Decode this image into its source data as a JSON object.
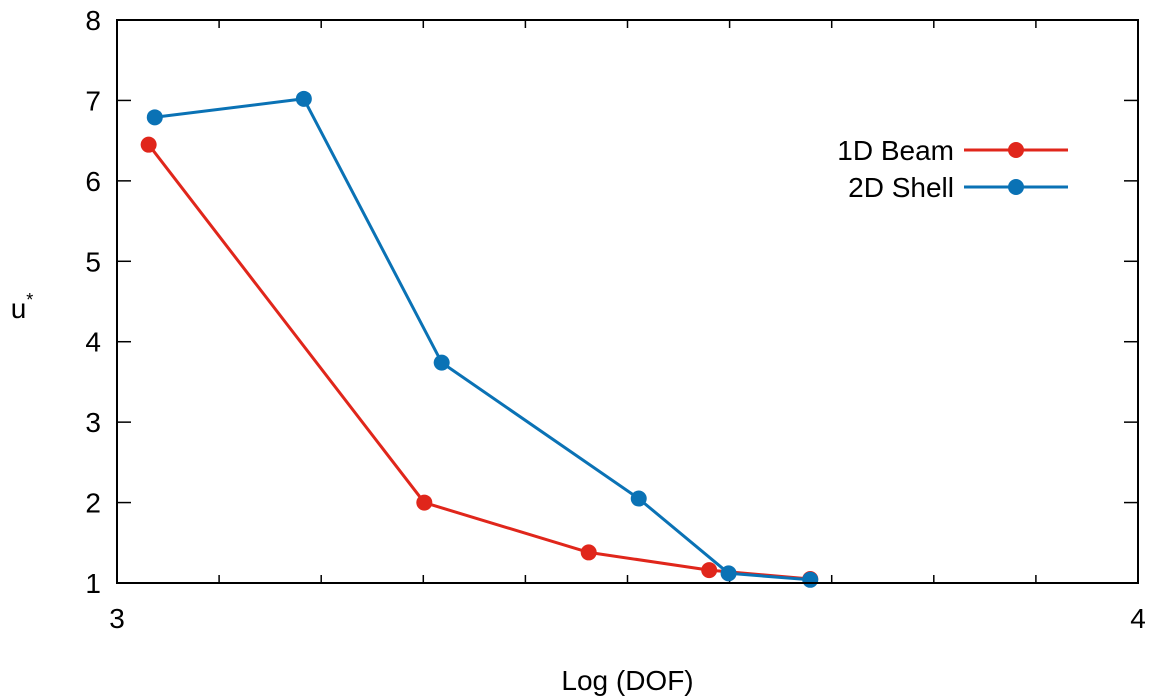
{
  "chart_data": {
    "type": "line",
    "xlabel": "Log (DOF)",
    "ylabel": "u",
    "ylabel_superscript": "*",
    "xlim": [
      3,
      4
    ],
    "ylim": [
      1,
      8
    ],
    "x_scale": "linear",
    "x_ticks": [
      3,
      4
    ],
    "x_tick_labels": [
      "3",
      "4"
    ],
    "x_minor_ticks": [
      3.1,
      3.2,
      3.3,
      3.4,
      3.5,
      3.6,
      3.7,
      3.8,
      3.9
    ],
    "y_ticks": [
      1,
      2,
      3,
      4,
      5,
      6,
      7,
      8
    ],
    "y_tick_labels": [
      "1",
      "2",
      "3",
      "4",
      "5",
      "6",
      "7",
      "8"
    ],
    "grid": false,
    "legend_position": "top-right",
    "series": [
      {
        "name": "1D Beam",
        "color": "#e0261b",
        "x": [
          3.031,
          3.301,
          3.462,
          3.58,
          3.679
        ],
        "y": [
          6.45,
          2.0,
          1.38,
          1.16,
          1.05
        ]
      },
      {
        "name": "2D Shell",
        "color": "#0a72b5",
        "x": [
          3.037,
          3.183,
          3.318,
          3.511,
          3.599,
          3.679
        ],
        "y": [
          6.79,
          7.02,
          3.74,
          2.05,
          1.12,
          1.04
        ]
      }
    ]
  }
}
